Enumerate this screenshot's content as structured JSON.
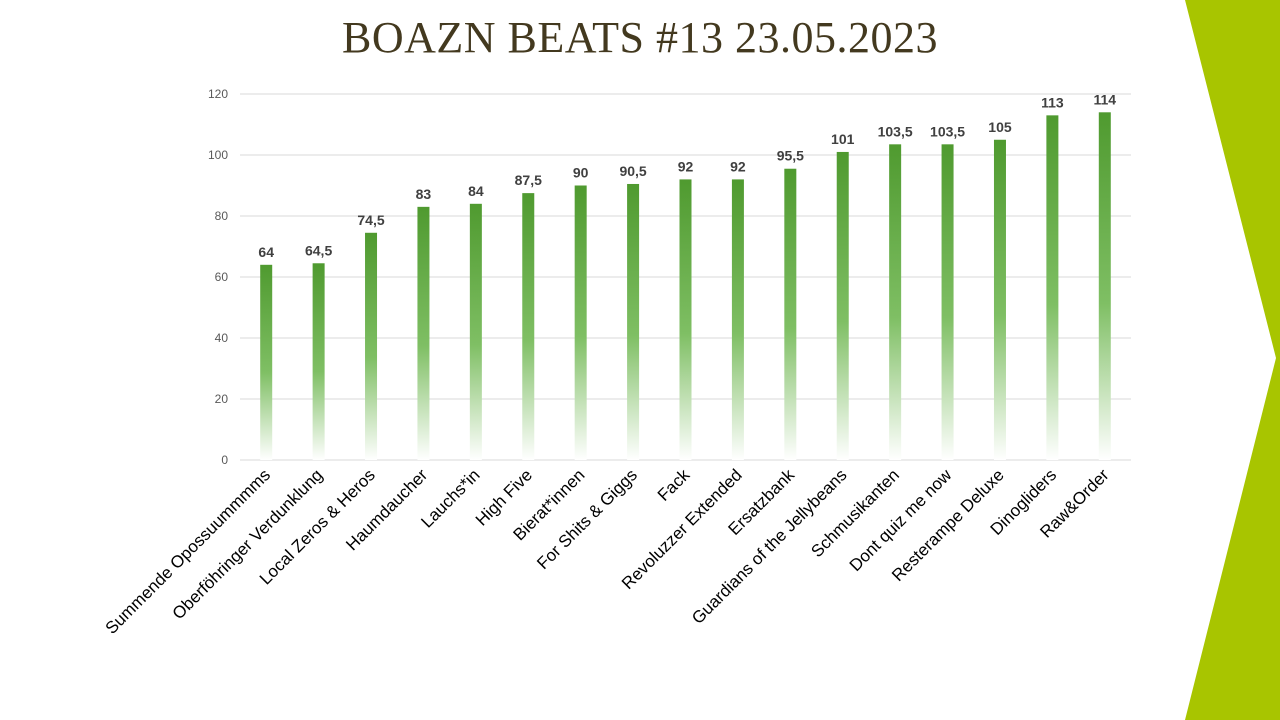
{
  "title": "BOAZN BEATS #13 23.05.2023",
  "colors": {
    "bar_top": "#4f9a2f",
    "bar_bottom": "#ffffff",
    "accent": "#a8c500",
    "grid": "#d9d9d9",
    "title": "#43391f"
  },
  "chart_data": {
    "type": "bar",
    "categories": [
      "Summende Opossuummmms",
      "Oberföhringer Verdunklung",
      "Local Zeros & Heros",
      "Haumdaucher",
      "Lauchs*in",
      "High Five",
      "Bierat*innen",
      "For Shits & Giggs",
      "Fack",
      "Revoluzzer Extended",
      "Ersatzbank",
      "Guardians of the Jellybeans",
      "Schmusikanten",
      "Dont quiz me now",
      "Resterampe Deluxe",
      "Dinogliders",
      "Raw&Order"
    ],
    "values": [
      64,
      64.5,
      74.5,
      83,
      84,
      87.5,
      90,
      90.5,
      92,
      92,
      95.5,
      101,
      103.5,
      103.5,
      105,
      113,
      114
    ],
    "data_labels": [
      "64",
      "64,5",
      "74,5",
      "83",
      "84",
      "87,5",
      "90",
      "90,5",
      "92",
      "92",
      "95,5",
      "101",
      "103,5",
      "103,5",
      "105",
      "113",
      "114"
    ],
    "title": "BOAZN BEATS #13 23.05.2023",
    "xlabel": "",
    "ylabel": "",
    "ylim": [
      0,
      120
    ],
    "yticks": [
      "0",
      "20",
      "40",
      "60",
      "80",
      "100",
      "120"
    ],
    "grid": true,
    "legend": "none"
  }
}
